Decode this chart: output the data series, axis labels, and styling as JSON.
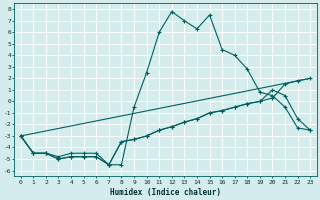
{
  "xlabel": "Humidex (Indice chaleur)",
  "bg_color": "#d4ecec",
  "grid_color": "#ffffff",
  "line_color": "#006060",
  "xlim": [
    -0.5,
    23.5
  ],
  "ylim": [
    -6.5,
    8.5
  ],
  "x_ticks": [
    0,
    1,
    2,
    3,
    4,
    5,
    6,
    7,
    8,
    9,
    10,
    11,
    12,
    13,
    14,
    15,
    16,
    17,
    18,
    19,
    20,
    21,
    22,
    23
  ],
  "y_ticks": [
    -6,
    -5,
    -4,
    -3,
    -2,
    -1,
    0,
    1,
    2,
    3,
    4,
    5,
    6,
    7,
    8
  ],
  "curve1_x": [
    0,
    1,
    2,
    3,
    4,
    5,
    6,
    7,
    8,
    9,
    10,
    11,
    12,
    13,
    14,
    15,
    16,
    17,
    18,
    19,
    20,
    21,
    22,
    23
  ],
  "curve1_y": [
    -3,
    -4.5,
    -4.5,
    -5,
    -4.8,
    -4.8,
    -4.8,
    -5.5,
    -5.5,
    -0.5,
    2.5,
    6.0,
    7.8,
    7.0,
    6.3,
    7.5,
    4.5,
    4.0,
    2.8,
    0.8,
    0.5,
    -0.5,
    -2.3,
    -2.5
  ],
  "curve2_x": [
    0,
    1,
    2,
    3,
    4,
    5,
    6,
    7,
    8,
    9,
    10,
    11,
    12,
    13,
    14,
    15,
    16,
    17,
    18,
    19,
    20,
    21,
    22,
    23
  ],
  "curve2_y": [
    -3,
    -4.5,
    -4.5,
    -5.0,
    -4.8,
    -4.8,
    -4.8,
    -5.5,
    -3.5,
    -3.3,
    -3.0,
    -2.5,
    -2.2,
    -1.8,
    -1.5,
    -1.0,
    -0.8,
    -0.5,
    -0.2,
    0.0,
    1.0,
    0.5,
    -1.5,
    -2.5
  ],
  "curve3_x": [
    0,
    1,
    2,
    3,
    4,
    5,
    6,
    7,
    8,
    9,
    10,
    11,
    12,
    13,
    14,
    15,
    16,
    17,
    18,
    19,
    20,
    21,
    22,
    23
  ],
  "curve3_y": [
    -3,
    -4.5,
    -4.5,
    -4.8,
    -4.5,
    -4.5,
    -4.5,
    -5.5,
    -3.5,
    -3.3,
    -3.0,
    -2.5,
    -2.2,
    -1.8,
    -1.5,
    -1.0,
    -0.8,
    -0.5,
    -0.2,
    0.0,
    0.3,
    1.5,
    1.8,
    2.0
  ],
  "curve4_x": [
    0,
    23
  ],
  "curve4_y": [
    -3.0,
    2.0
  ]
}
